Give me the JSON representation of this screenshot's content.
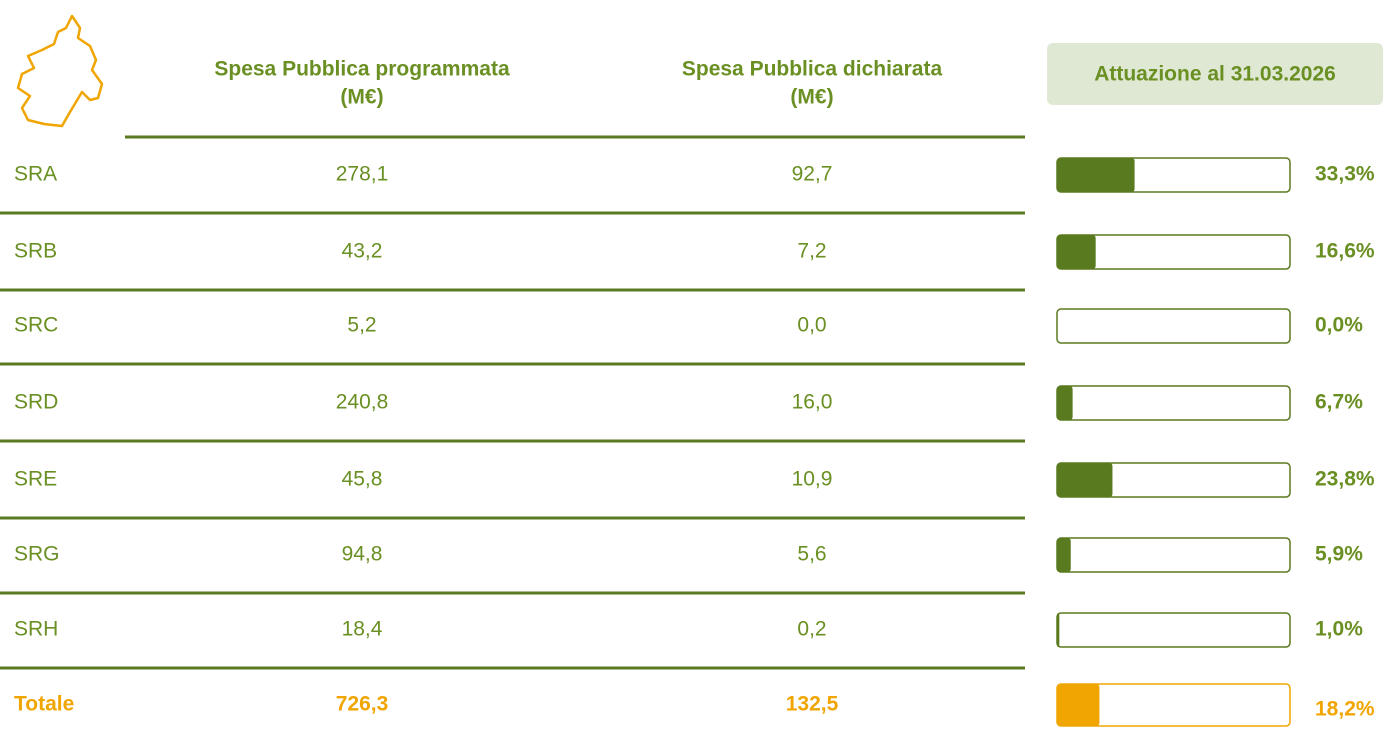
{
  "header": {
    "columns": [
      {
        "title": "Spesa Pubblica programmata",
        "unit": "(M€)"
      },
      {
        "title": "Spesa Pubblica dichiarata",
        "unit": "(M€)"
      }
    ],
    "progress_title": "Attuazione al 31.03.2026"
  },
  "xlim": [
    0,
    100
  ],
  "rows": [
    {
      "label": "SRA",
      "programmata": "278,1",
      "dichiarata": "92,7",
      "attuazione": {
        "value": 33.3,
        "label": "33,3%"
      }
    },
    {
      "label": "SRB",
      "programmata": "43,2",
      "dichiarata": "7,2",
      "attuazione": {
        "value": 16.6,
        "label": "16,6%"
      }
    },
    {
      "label": "SRC",
      "programmata": "5,2",
      "dichiarata": "0,0",
      "attuazione": {
        "value": 0,
        "label": "0,0%"
      }
    },
    {
      "label": "SRD",
      "programmata": "240,8",
      "dichiarata": "16,0",
      "attuazione": {
        "value": 6.7,
        "label": "6,7%"
      }
    },
    {
      "label": "SRE",
      "programmata": "45,8",
      "dichiarata": "10,9",
      "attuazione": {
        "value": 23.8,
        "label": "23,8%"
      }
    },
    {
      "label": "SRG",
      "programmata": "94,8",
      "dichiarata": "5,6",
      "attuazione": {
        "value": 5.9,
        "label": "5,9%"
      }
    },
    {
      "label": "SRH",
      "programmata": "18,4",
      "dichiarata": "0,2",
      "attuazione": {
        "value": 1.0,
        "label": "1,0%"
      }
    }
  ],
  "total": {
    "label": "Totale",
    "programmata": "726,3",
    "dichiarata": "132,5",
    "attuazione": {
      "value": 18.2,
      "label": "18,2%"
    }
  }
}
